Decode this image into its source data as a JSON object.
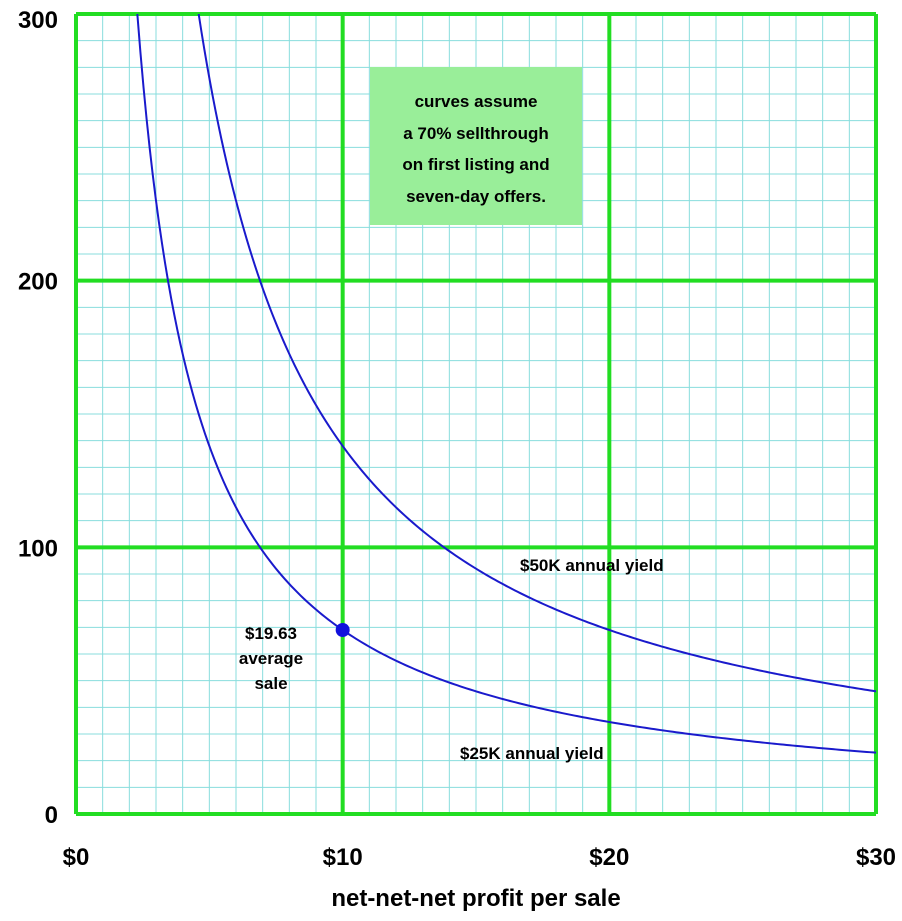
{
  "chart_data": {
    "type": "line",
    "title": "",
    "xlabel": "net-net-net profit per sale",
    "ylabel": "",
    "xlim": [
      0,
      30
    ],
    "ylim": [
      0,
      300
    ],
    "x_ticks": [
      {
        "value": 0,
        "label": "$0"
      },
      {
        "value": 10,
        "label": "$10"
      },
      {
        "value": 20,
        "label": "$20"
      },
      {
        "value": 30,
        "label": "$30"
      }
    ],
    "y_ticks": [
      {
        "value": 0,
        "label": "0"
      },
      {
        "value": 100,
        "label": "100"
      },
      {
        "value": 200,
        "label": "200"
      },
      {
        "value": 300,
        "label": "300"
      }
    ],
    "grid": true,
    "colors": {
      "major_grid": "#22dd22",
      "minor_grid": "#88dddd",
      "curve": "#1a1acc",
      "note_bg": "#99ee99",
      "marker": "#1111dd"
    },
    "series": [
      {
        "x": [
          2.3,
          2.5,
          3,
          3.5,
          4,
          5,
          6,
          7,
          8,
          10,
          12,
          15,
          20,
          25,
          30
        ],
        "values": [
          300,
          276,
          230,
          197,
          172,
          138,
          115,
          99,
          86,
          69,
          57.5,
          46,
          34.5,
          27.6,
          23
        ]
      },
      {
        "x": [
          4.6,
          5,
          6,
          7,
          8,
          10,
          12,
          15,
          20,
          25,
          30
        ],
        "values": [
          300,
          276,
          230,
          197,
          172.5,
          138,
          115,
          92,
          69,
          55.2,
          46
        ]
      }
    ],
    "annotations": {
      "note_lines": [
        "curves assume",
        "a 70% sellthrough",
        "on first listing and",
        "seven-day offers."
      ],
      "point_label_lines": [
        "$19.63",
        "average",
        "sale"
      ],
      "point": {
        "x": 10,
        "y": 69
      },
      "upper_curve_label": "$50K annual yield",
      "lower_curve_label": "$25K annual yield"
    }
  }
}
